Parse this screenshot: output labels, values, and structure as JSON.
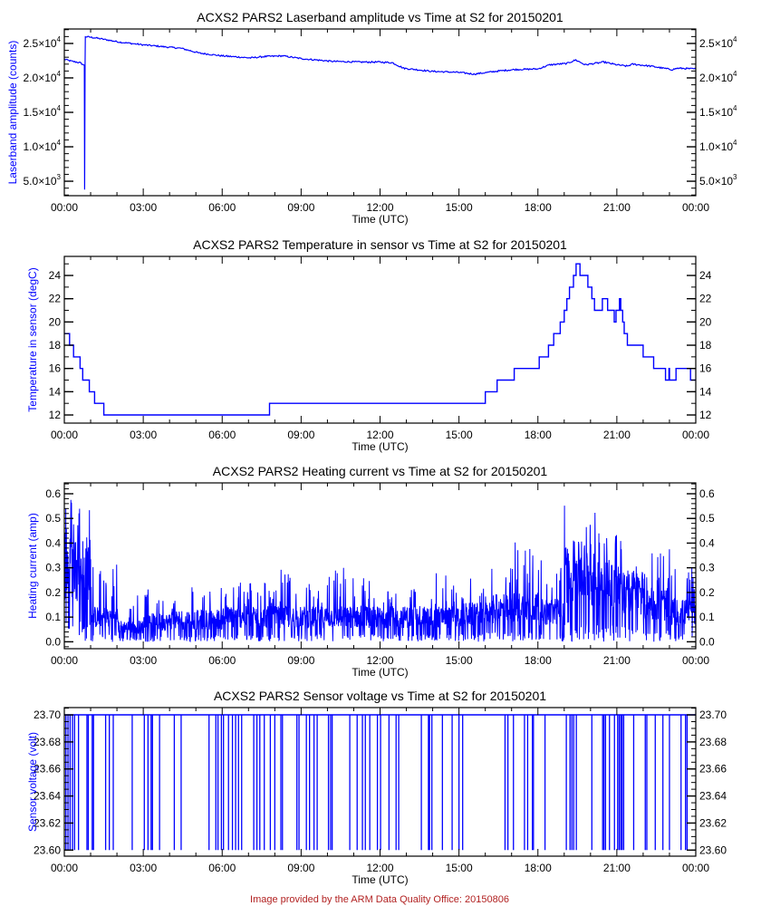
{
  "footer": "Image provided by the ARM Data Quality Office: 20150806",
  "colors": {
    "series": "#0000ff",
    "axis": "#000000",
    "ylabel": "#0000ff",
    "footer": "#b22222"
  },
  "chart_data": [
    {
      "type": "line",
      "title": "ACXS2 PARS2 Laserband amplitude vs Time at S2 for 20150201",
      "xlabel": "Time (UTC)",
      "ylabel": "Laserband amplitude (counts)",
      "xlim": [
        0,
        24
      ],
      "ylim": [
        2900,
        27100
      ],
      "x_ticks": [
        "00:00",
        "03:00",
        "06:00",
        "09:00",
        "12:00",
        "15:00",
        "18:00",
        "21:00",
        "00:00"
      ],
      "y_ticks": [
        {
          "value": 5000,
          "mant": "5.0",
          "exp": "3"
        },
        {
          "value": 10000,
          "mant": "1.0",
          "exp": "4"
        },
        {
          "value": 15000,
          "mant": "1.5",
          "exp": "4"
        },
        {
          "value": 20000,
          "mant": "2.0",
          "exp": "4"
        },
        {
          "value": 25000,
          "mant": "2.5",
          "exp": "4"
        }
      ],
      "y_minor_step": 1000,
      "points": [
        [
          0,
          22700
        ],
        [
          0.3,
          22400
        ],
        [
          0.6,
          22200
        ],
        [
          0.76,
          21800
        ],
        [
          0.77,
          3800
        ],
        [
          0.78,
          15000
        ],
        [
          0.79,
          21800
        ],
        [
          0.8,
          26000
        ],
        [
          1.2,
          25800
        ],
        [
          2.1,
          25200
        ],
        [
          3.0,
          24800
        ],
        [
          4.44,
          24300
        ],
        [
          5.13,
          23600
        ],
        [
          6.0,
          23200
        ],
        [
          7.08,
          22900
        ],
        [
          7.6,
          23100
        ],
        [
          8.3,
          23200
        ],
        [
          9.0,
          22800
        ],
        [
          10.2,
          22400
        ],
        [
          11.3,
          22300
        ],
        [
          12.0,
          22300
        ],
        [
          12.47,
          22200
        ],
        [
          12.9,
          21400
        ],
        [
          13.97,
          20950
        ],
        [
          15.0,
          20800
        ],
        [
          15.57,
          20550
        ],
        [
          16.5,
          21000
        ],
        [
          17.07,
          21200
        ],
        [
          18.0,
          21300
        ],
        [
          18.45,
          21900
        ],
        [
          19.1,
          22100
        ],
        [
          19.44,
          22600
        ],
        [
          19.8,
          21900
        ],
        [
          20.5,
          22300
        ],
        [
          21.0,
          21900
        ],
        [
          21.4,
          21700
        ],
        [
          21.6,
          22000
        ],
        [
          22.3,
          21700
        ],
        [
          23.1,
          21200
        ],
        [
          23.3,
          21400
        ],
        [
          24.0,
          21300
        ]
      ]
    },
    {
      "type": "line",
      "title": "ACXS2 PARS2 Temperature in sensor vs Time at S2 for 20150201",
      "xlabel": "Time (UTC)",
      "ylabel": "Temperature in sensor (degC)",
      "xlim": [
        0,
        24
      ],
      "ylim": [
        11.3,
        25.64
      ],
      "x_ticks": [
        "00:00",
        "03:00",
        "06:00",
        "09:00",
        "12:00",
        "15:00",
        "18:00",
        "21:00",
        "00:00"
      ],
      "y_ticks": [
        {
          "value": 12,
          "label": "12"
        },
        {
          "value": 14,
          "label": "14"
        },
        {
          "value": 16,
          "label": "16"
        },
        {
          "value": 18,
          "label": "18"
        },
        {
          "value": 20,
          "label": "20"
        },
        {
          "value": 22,
          "label": "22"
        },
        {
          "value": 24,
          "label": "24"
        }
      ],
      "y_minor_step": 1,
      "steps": [
        [
          0,
          19
        ],
        [
          0.2,
          18
        ],
        [
          0.35,
          17
        ],
        [
          0.6,
          16
        ],
        [
          0.7,
          15
        ],
        [
          0.95,
          14
        ],
        [
          1.15,
          13
        ],
        [
          1.5,
          12
        ],
        [
          7.8,
          13
        ],
        [
          16.0,
          14
        ],
        [
          16.45,
          15
        ],
        [
          17.1,
          16
        ],
        [
          18.05,
          17
        ],
        [
          18.4,
          18
        ],
        [
          18.6,
          19
        ],
        [
          18.85,
          20
        ],
        [
          19.0,
          21
        ],
        [
          19.1,
          22
        ],
        [
          19.2,
          23
        ],
        [
          19.35,
          24
        ],
        [
          19.45,
          25
        ],
        [
          19.6,
          24
        ],
        [
          19.9,
          23
        ],
        [
          20.05,
          22
        ],
        [
          20.15,
          21
        ],
        [
          20.45,
          22
        ],
        [
          20.65,
          21
        ],
        [
          20.9,
          20
        ],
        [
          20.97,
          21
        ],
        [
          21.1,
          22
        ],
        [
          21.15,
          21
        ],
        [
          21.22,
          20
        ],
        [
          21.28,
          19
        ],
        [
          21.4,
          18
        ],
        [
          22.0,
          17
        ],
        [
          22.4,
          16
        ],
        [
          22.85,
          15
        ],
        [
          22.98,
          16
        ],
        [
          23.0,
          15
        ],
        [
          23.25,
          16
        ],
        [
          23.8,
          15
        ],
        [
          24.0,
          15
        ]
      ]
    },
    {
      "type": "line",
      "title": "ACXS2 PARS2 Heating current vs Time at S2 for 20150201",
      "xlabel": "Time (UTC)",
      "ylabel": "Heating current (amp)",
      "xlim": [
        0,
        24
      ],
      "ylim": [
        -0.028,
        0.644
      ],
      "x_ticks": [
        "00:00",
        "03:00",
        "06:00",
        "09:00",
        "12:00",
        "15:00",
        "18:00",
        "21:00",
        "00:00"
      ],
      "y_ticks": [
        {
          "value": 0,
          "label": "0.0"
        },
        {
          "value": 0.1,
          "label": "0.1"
        },
        {
          "value": 0.2,
          "label": "0.2"
        },
        {
          "value": 0.3,
          "label": "0.3"
        },
        {
          "value": 0.4,
          "label": "0.4"
        },
        {
          "value": 0.5,
          "label": "0.5"
        },
        {
          "value": 0.6,
          "label": "0.6"
        }
      ],
      "y_minor_step": 0.02,
      "hourly_envelope": [
        {
          "hour": 0,
          "typical": 0.3,
          "max": 0.6
        },
        {
          "hour": 1,
          "typical": 0.1,
          "max": 0.33
        },
        {
          "hour": 2,
          "typical": 0.06,
          "max": 0.2
        },
        {
          "hour": 3,
          "typical": 0.08,
          "max": 0.22
        },
        {
          "hour": 4,
          "typical": 0.09,
          "max": 0.24
        },
        {
          "hour": 5,
          "typical": 0.09,
          "max": 0.22
        },
        {
          "hour": 6,
          "typical": 0.1,
          "max": 0.26
        },
        {
          "hour": 7,
          "typical": 0.1,
          "max": 0.26
        },
        {
          "hour": 8,
          "typical": 0.1,
          "max": 0.3
        },
        {
          "hour": 9,
          "typical": 0.1,
          "max": 0.25
        },
        {
          "hour": 10,
          "typical": 0.1,
          "max": 0.32
        },
        {
          "hour": 11,
          "typical": 0.1,
          "max": 0.27
        },
        {
          "hour": 12,
          "typical": 0.1,
          "max": 0.24
        },
        {
          "hour": 13,
          "typical": 0.1,
          "max": 0.22
        },
        {
          "hour": 14,
          "typical": 0.1,
          "max": 0.29
        },
        {
          "hour": 15,
          "typical": 0.11,
          "max": 0.26
        },
        {
          "hour": 16,
          "typical": 0.13,
          "max": 0.33
        },
        {
          "hour": 17,
          "typical": 0.14,
          "max": 0.41
        },
        {
          "hour": 18,
          "typical": 0.12,
          "max": 0.36
        },
        {
          "hour": 19,
          "typical": 0.28,
          "max": 0.56
        },
        {
          "hour": 20,
          "typical": 0.25,
          "max": 0.55
        },
        {
          "hour": 21,
          "typical": 0.2,
          "max": 0.43
        },
        {
          "hour": 22,
          "typical": 0.15,
          "max": 0.39
        },
        {
          "hour": 23,
          "typical": 0.12,
          "max": 0.3
        }
      ]
    },
    {
      "type": "line",
      "title": "ACXS2 PARS2 Sensor voltage vs Time at S2 for 20150201",
      "xlabel": "Time (UTC)",
      "ylabel": "Sensor voltage (volt)",
      "xlim": [
        0,
        24
      ],
      "ylim": [
        23.5955,
        23.7054
      ],
      "x_ticks": [
        "00:00",
        "03:00",
        "06:00",
        "09:00",
        "12:00",
        "15:00",
        "18:00",
        "21:00",
        "00:00"
      ],
      "y_ticks": [
        {
          "value": 23.6,
          "label": "23.60"
        },
        {
          "value": 23.62,
          "label": "23.62"
        },
        {
          "value": 23.64,
          "label": "23.64"
        },
        {
          "value": 23.66,
          "label": "23.66"
        },
        {
          "value": 23.68,
          "label": "23.68"
        },
        {
          "value": 23.7,
          "label": "23.70"
        }
      ],
      "y_minor_step": 0.005,
      "baseline": 23.7,
      "dropout_min": 23.6,
      "dropouts_hours": [
        0.06,
        0.14,
        0.22,
        0.31,
        0.39,
        0.54,
        0.86,
        0.91,
        1.06,
        1.11,
        1.57,
        1.71,
        1.86,
        2.58,
        3.04,
        3.18,
        3.3,
        3.35,
        3.62,
        4.18,
        4.44,
        5.5,
        5.76,
        5.84,
        5.97,
        6.05,
        6.24,
        6.39,
        6.51,
        6.62,
        6.74,
        7.2,
        7.32,
        7.43,
        7.6,
        7.83,
        8.0,
        8.23,
        8.29,
        8.84,
        8.92,
        9.2,
        9.32,
        9.49,
        9.61,
        10.04,
        10.12,
        10.18,
        10.85,
        11.13,
        11.33,
        11.44,
        11.61,
        11.9,
        12.02,
        12.34,
        12.61,
        12.71,
        13.57,
        13.84,
        13.88,
        13.97,
        14.37,
        14.74,
        15.0,
        15.14,
        16.75,
        16.86,
        17.07,
        17.49,
        17.61,
        17.79,
        17.83,
        18.27,
        19.08,
        19.22,
        19.29,
        19.36,
        19.46,
        20.05,
        20.46,
        20.51,
        20.57,
        20.72,
        20.91,
        21.03,
        21.09,
        21.15,
        21.2,
        21.26,
        21.64,
        22.08,
        22.14,
        22.46,
        22.75,
        23.0,
        23.44,
        23.61,
        23.67
      ]
    }
  ]
}
